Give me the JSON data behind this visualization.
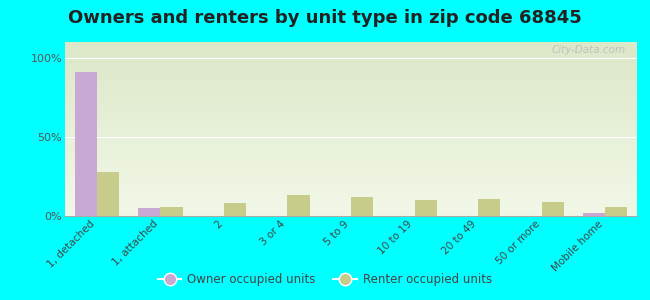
{
  "title": "Owners and renters by unit type in zip code 68845",
  "categories": [
    "1, detached",
    "1, attached",
    "2",
    "3 or 4",
    "5 to 9",
    "10 to 19",
    "20 to 49",
    "50 or more",
    "Mobile home"
  ],
  "owner_values": [
    91,
    5,
    0,
    0,
    0,
    0,
    0,
    0,
    2
  ],
  "renter_values": [
    28,
    6,
    8,
    13,
    12,
    10,
    11,
    9,
    6
  ],
  "owner_color": "#c9a8d4",
  "renter_color": "#c8cc8a",
  "background_color": "#00ffff",
  "plot_bg_top": "#dce8c8",
  "plot_bg_bottom": "#f2f8e8",
  "yticks": [
    0,
    50,
    100
  ],
  "ylim": [
    0,
    110
  ],
  "bar_width": 0.35,
  "title_fontsize": 13,
  "watermark": "City-Data.com"
}
